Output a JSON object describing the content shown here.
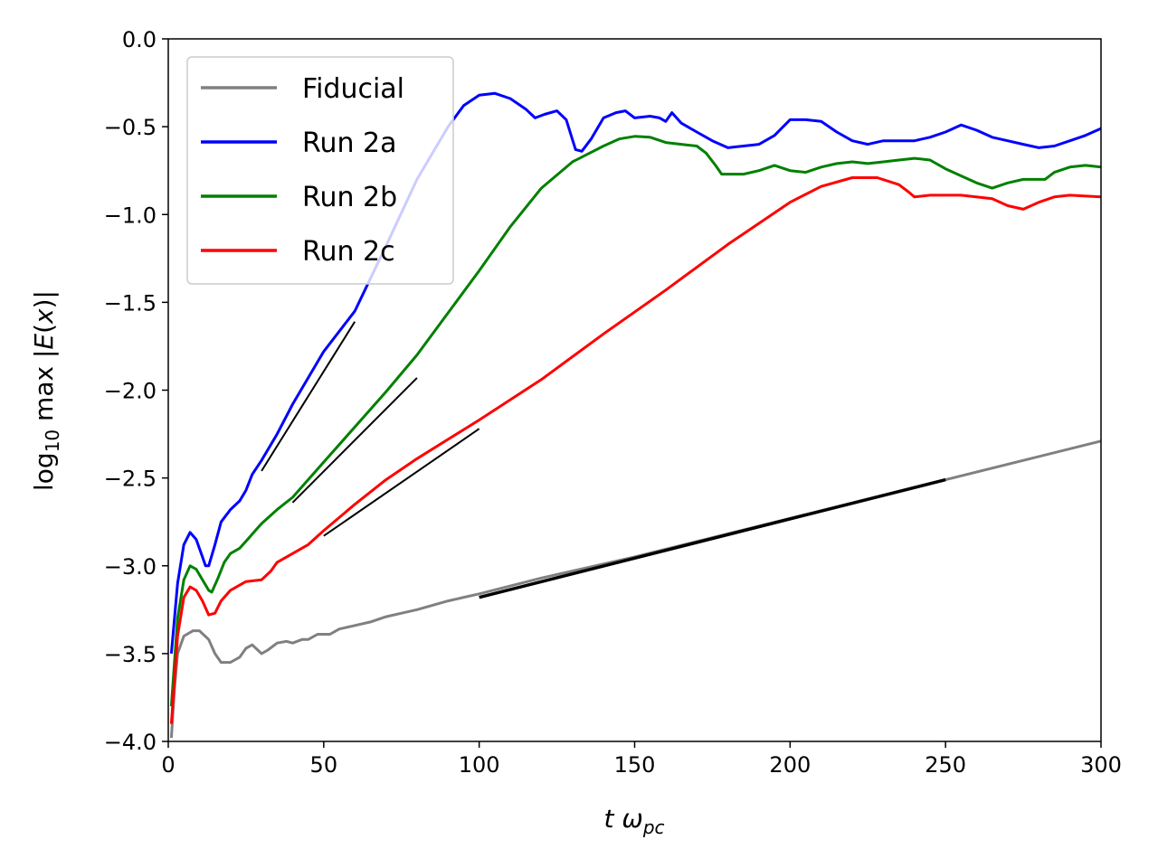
{
  "chart_data": {
    "type": "line",
    "xlabel": "t ω_pc",
    "ylabel": "log₁₀ max |E(x)|",
    "xlim": [
      0,
      300
    ],
    "ylim": [
      -4.0,
      0.0
    ],
    "x_ticks": [
      0,
      50,
      100,
      150,
      200,
      250,
      300
    ],
    "x_tick_labels": [
      "0",
      "50",
      "100",
      "150",
      "200",
      "250",
      "300"
    ],
    "y_ticks": [
      0.0,
      -0.5,
      -1.0,
      -1.5,
      -2.0,
      -2.5,
      -3.0,
      -3.5,
      -4.0
    ],
    "y_tick_labels": [
      "0.0",
      "−0.5",
      "−1.0",
      "−1.5",
      "−2.0",
      "−2.5",
      "−3.0",
      "−3.5",
      "−4.0"
    ],
    "grid": false,
    "legend_position": "top-left",
    "series": [
      {
        "name": "Fiducial",
        "color": "#808080",
        "points": [
          [
            1,
            -3.98
          ],
          [
            2,
            -3.7
          ],
          [
            3,
            -3.5
          ],
          [
            5,
            -3.4
          ],
          [
            8,
            -3.37
          ],
          [
            10,
            -3.37
          ],
          [
            13,
            -3.42
          ],
          [
            15,
            -3.5
          ],
          [
            17,
            -3.55
          ],
          [
            20,
            -3.55
          ],
          [
            23,
            -3.52
          ],
          [
            25,
            -3.47
          ],
          [
            27,
            -3.45
          ],
          [
            30,
            -3.5
          ],
          [
            32,
            -3.48
          ],
          [
            35,
            -3.44
          ],
          [
            38,
            -3.43
          ],
          [
            40,
            -3.44
          ],
          [
            43,
            -3.42
          ],
          [
            45,
            -3.42
          ],
          [
            48,
            -3.39
          ],
          [
            50,
            -3.39
          ],
          [
            52,
            -3.39
          ],
          [
            55,
            -3.36
          ],
          [
            60,
            -3.34
          ],
          [
            65,
            -3.32
          ],
          [
            70,
            -3.29
          ],
          [
            75,
            -3.27
          ],
          [
            80,
            -3.25
          ],
          [
            90,
            -3.2
          ],
          [
            100,
            -3.16
          ],
          [
            120,
            -3.07
          ],
          [
            150,
            -2.95
          ],
          [
            200,
            -2.73
          ],
          [
            250,
            -2.51
          ],
          [
            300,
            -2.29
          ]
        ]
      },
      {
        "name": "Run 2a",
        "color": "#0000ff",
        "points": [
          [
            1,
            -3.5
          ],
          [
            3,
            -3.1
          ],
          [
            5,
            -2.88
          ],
          [
            7,
            -2.81
          ],
          [
            9,
            -2.85
          ],
          [
            11,
            -2.95
          ],
          [
            12,
            -3.0
          ],
          [
            13,
            -3.0
          ],
          [
            15,
            -2.88
          ],
          [
            17,
            -2.75
          ],
          [
            20,
            -2.68
          ],
          [
            23,
            -2.63
          ],
          [
            25,
            -2.57
          ],
          [
            27,
            -2.48
          ],
          [
            30,
            -2.4
          ],
          [
            35,
            -2.25
          ],
          [
            40,
            -2.08
          ],
          [
            50,
            -1.78
          ],
          [
            60,
            -1.55
          ],
          [
            70,
            -1.18
          ],
          [
            80,
            -0.8
          ],
          [
            90,
            -0.5
          ],
          [
            95,
            -0.38
          ],
          [
            100,
            -0.32
          ],
          [
            105,
            -0.31
          ],
          [
            110,
            -0.34
          ],
          [
            115,
            -0.4
          ],
          [
            118,
            -0.45
          ],
          [
            121,
            -0.43
          ],
          [
            125,
            -0.41
          ],
          [
            128,
            -0.46
          ],
          [
            131,
            -0.63
          ],
          [
            133,
            -0.64
          ],
          [
            136,
            -0.57
          ],
          [
            140,
            -0.45
          ],
          [
            144,
            -0.42
          ],
          [
            147,
            -0.41
          ],
          [
            150,
            -0.45
          ],
          [
            155,
            -0.44
          ],
          [
            158,
            -0.45
          ],
          [
            160,
            -0.47
          ],
          [
            162,
            -0.42
          ],
          [
            165,
            -0.48
          ],
          [
            170,
            -0.53
          ],
          [
            175,
            -0.58
          ],
          [
            180,
            -0.62
          ],
          [
            185,
            -0.61
          ],
          [
            190,
            -0.6
          ],
          [
            195,
            -0.55
          ],
          [
            200,
            -0.46
          ],
          [
            205,
            -0.46
          ],
          [
            210,
            -0.47
          ],
          [
            215,
            -0.53
          ],
          [
            220,
            -0.58
          ],
          [
            225,
            -0.6
          ],
          [
            230,
            -0.58
          ],
          [
            235,
            -0.58
          ],
          [
            240,
            -0.58
          ],
          [
            245,
            -0.56
          ],
          [
            250,
            -0.53
          ],
          [
            255,
            -0.49
          ],
          [
            260,
            -0.52
          ],
          [
            265,
            -0.56
          ],
          [
            270,
            -0.58
          ],
          [
            275,
            -0.6
          ],
          [
            280,
            -0.62
          ],
          [
            285,
            -0.61
          ],
          [
            290,
            -0.58
          ],
          [
            295,
            -0.55
          ],
          [
            300,
            -0.51
          ]
        ]
      },
      {
        "name": "Run 2b",
        "color": "#008000",
        "points": [
          [
            1,
            -3.8
          ],
          [
            3,
            -3.3
          ],
          [
            5,
            -3.08
          ],
          [
            7,
            -3.0
          ],
          [
            9,
            -3.02
          ],
          [
            11,
            -3.08
          ],
          [
            13,
            -3.14
          ],
          [
            14,
            -3.15
          ],
          [
            16,
            -3.07
          ],
          [
            18,
            -2.98
          ],
          [
            20,
            -2.93
          ],
          [
            23,
            -2.9
          ],
          [
            25,
            -2.86
          ],
          [
            28,
            -2.8
          ],
          [
            30,
            -2.76
          ],
          [
            35,
            -2.68
          ],
          [
            40,
            -2.61
          ],
          [
            50,
            -2.41
          ],
          [
            60,
            -2.21
          ],
          [
            70,
            -2.01
          ],
          [
            80,
            -1.8
          ],
          [
            90,
            -1.56
          ],
          [
            100,
            -1.32
          ],
          [
            110,
            -1.07
          ],
          [
            120,
            -0.85
          ],
          [
            130,
            -0.7
          ],
          [
            140,
            -0.61
          ],
          [
            145,
            -0.57
          ],
          [
            150,
            -0.555
          ],
          [
            155,
            -0.56
          ],
          [
            160,
            -0.59
          ],
          [
            165,
            -0.6
          ],
          [
            170,
            -0.61
          ],
          [
            173,
            -0.65
          ],
          [
            176,
            -0.72
          ],
          [
            178,
            -0.77
          ],
          [
            185,
            -0.77
          ],
          [
            190,
            -0.75
          ],
          [
            195,
            -0.72
          ],
          [
            200,
            -0.75
          ],
          [
            205,
            -0.76
          ],
          [
            210,
            -0.73
          ],
          [
            215,
            -0.71
          ],
          [
            220,
            -0.7
          ],
          [
            225,
            -0.71
          ],
          [
            230,
            -0.7
          ],
          [
            235,
            -0.69
          ],
          [
            240,
            -0.68
          ],
          [
            245,
            -0.69
          ],
          [
            250,
            -0.74
          ],
          [
            255,
            -0.78
          ],
          [
            260,
            -0.82
          ],
          [
            265,
            -0.85
          ],
          [
            270,
            -0.82
          ],
          [
            275,
            -0.8
          ],
          [
            282,
            -0.8
          ],
          [
            285,
            -0.76
          ],
          [
            290,
            -0.73
          ],
          [
            295,
            -0.72
          ],
          [
            300,
            -0.73
          ]
        ]
      },
      {
        "name": "Run 2c",
        "color": "#ff0000",
        "points": [
          [
            1,
            -3.9
          ],
          [
            3,
            -3.4
          ],
          [
            5,
            -3.18
          ],
          [
            7,
            -3.12
          ],
          [
            9,
            -3.14
          ],
          [
            11,
            -3.2
          ],
          [
            13,
            -3.28
          ],
          [
            15,
            -3.27
          ],
          [
            17,
            -3.2
          ],
          [
            20,
            -3.14
          ],
          [
            23,
            -3.11
          ],
          [
            25,
            -3.09
          ],
          [
            30,
            -3.08
          ],
          [
            33,
            -3.03
          ],
          [
            35,
            -2.98
          ],
          [
            40,
            -2.93
          ],
          [
            45,
            -2.88
          ],
          [
            50,
            -2.8
          ],
          [
            60,
            -2.65
          ],
          [
            70,
            -2.51
          ],
          [
            80,
            -2.39
          ],
          [
            90,
            -2.28
          ],
          [
            100,
            -2.17
          ],
          [
            120,
            -1.94
          ],
          [
            140,
            -1.68
          ],
          [
            160,
            -1.43
          ],
          [
            180,
            -1.17
          ],
          [
            200,
            -0.93
          ],
          [
            210,
            -0.84
          ],
          [
            220,
            -0.79
          ],
          [
            228,
            -0.79
          ],
          [
            235,
            -0.83
          ],
          [
            238,
            -0.87
          ],
          [
            240,
            -0.9
          ],
          [
            245,
            -0.89
          ],
          [
            255,
            -0.89
          ],
          [
            265,
            -0.91
          ],
          [
            270,
            -0.95
          ],
          [
            275,
            -0.97
          ],
          [
            280,
            -0.93
          ],
          [
            285,
            -0.9
          ],
          [
            290,
            -0.89
          ],
          [
            300,
            -0.9
          ]
        ]
      }
    ],
    "fit_lines": [
      {
        "color": "#000000",
        "points": [
          [
            30,
            -2.46
          ],
          [
            60,
            -1.61
          ]
        ]
      },
      {
        "color": "#000000",
        "points": [
          [
            40,
            -2.64
          ],
          [
            80,
            -1.93
          ]
        ]
      },
      {
        "color": "#000000",
        "points": [
          [
            50,
            -2.83
          ],
          [
            100,
            -2.22
          ]
        ]
      },
      {
        "color": "#000000",
        "points": [
          [
            100,
            -3.18
          ],
          [
            250,
            -2.51
          ]
        ]
      }
    ]
  }
}
